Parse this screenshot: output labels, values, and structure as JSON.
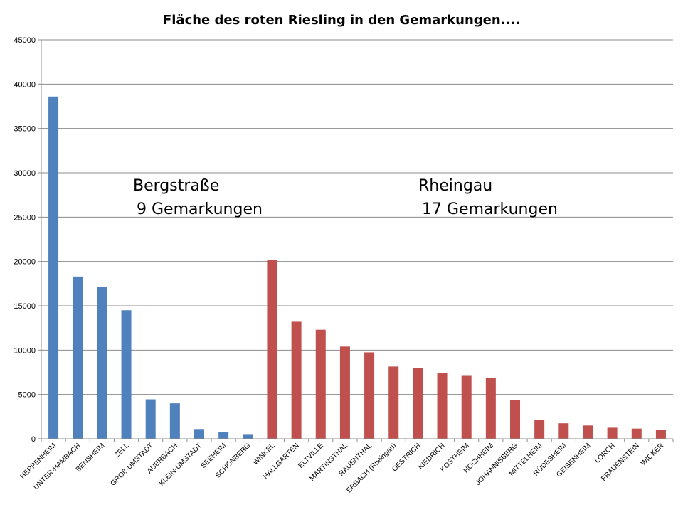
{
  "chart_data": {
    "type": "bar",
    "title": "Fläche des roten Riesling in den Gemarkungen....",
    "xlabel": "",
    "ylabel": "",
    "ylim": [
      0,
      45000
    ],
    "ytick_values": [
      0,
      5000,
      10000,
      15000,
      20000,
      25000,
      30000,
      35000,
      40000,
      45000
    ],
    "grid": true,
    "legend": "none",
    "categories": [
      "HEPPENHEIM",
      "UNTER-HAMBACH",
      "BENSHEIM",
      "ZELL",
      "GROß-UMSTADT",
      "AUERBACH",
      "KLEIN-UMSTADT",
      "SEEHEIM",
      "SCHÖNBERG",
      "WINKEL",
      "HALLGARTEN",
      "ELTVILLE",
      "MARTINSTHAL",
      "RAUENTHAL",
      "ERBACH (Rheingau)",
      "OESTRICH",
      "KIEDRICH",
      "KOSTHEIM",
      "HOCHHEIM",
      "JOHANNISBERG",
      "MITTELHEIM",
      "RÜDESHEIM",
      "GEISENHEIM",
      "LORCH",
      "FRAUENSTEIN",
      "WICKER"
    ],
    "values": [
      38600,
      18300,
      17100,
      14500,
      4450,
      4000,
      1100,
      750,
      450,
      20200,
      13200,
      12300,
      10400,
      9750,
      8150,
      8000,
      7400,
      7100,
      6900,
      4350,
      2150,
      1750,
      1500,
      1250,
      1150,
      1000
    ],
    "groups": [
      {
        "region": "Bergstraße",
        "count_label": "9 Gemarkungen",
        "color": "#4f81bd",
        "start": 0,
        "end": 9
      },
      {
        "region": "Rheingau",
        "count_label": "17 Gemarkungen",
        "color": "#c0504d",
        "start": 9,
        "end": 26
      }
    ]
  }
}
